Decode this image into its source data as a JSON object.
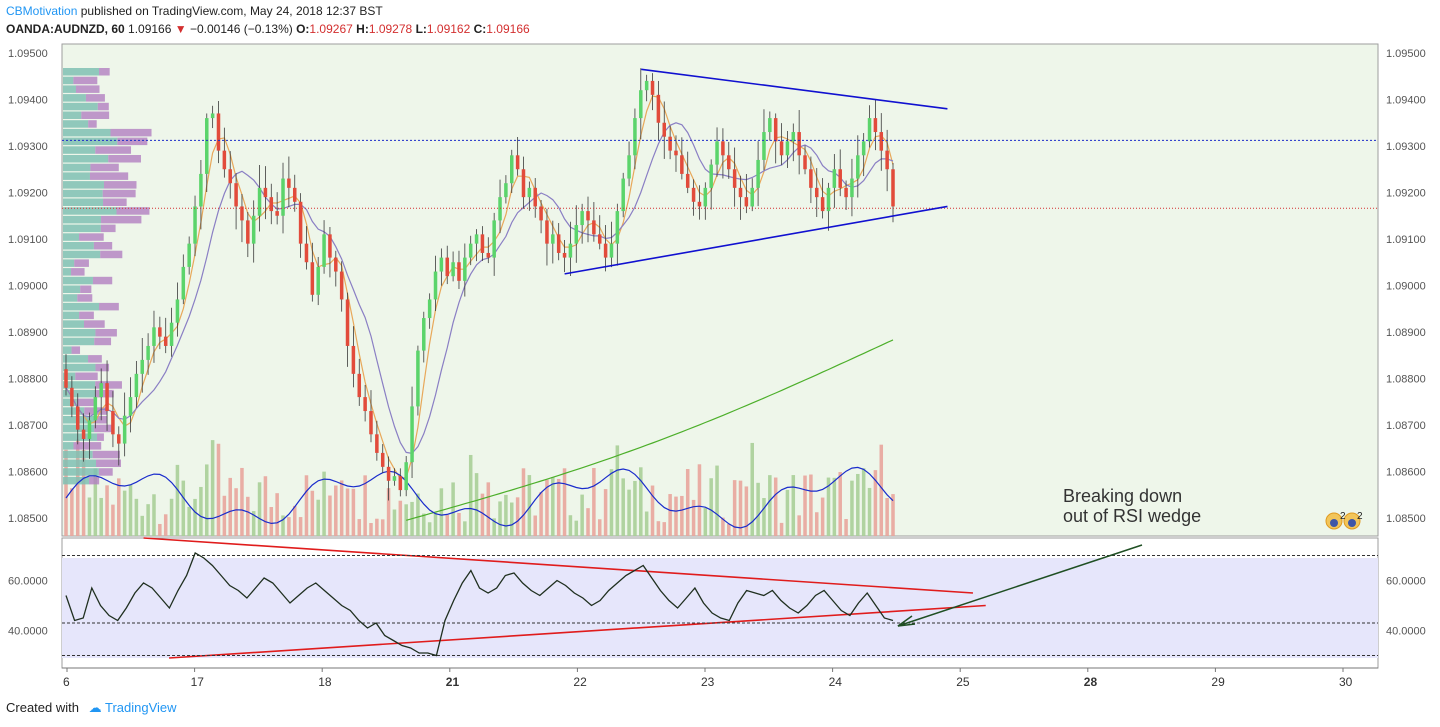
{
  "header": {
    "author": "CBMotivation",
    "published": "published on TradingView.com, May 24, 2018 12:37 BST",
    "symbol": "OANDA:AUDNZD, 60",
    "last": "1.09166",
    "change": "−0.00146 (−0.13%)",
    "o_label": "O:",
    "o_value": "1.09267",
    "h_label": "H:",
    "h_value": "1.09278",
    "l_label": "L:",
    "l_value": "1.09162",
    "c_label": "C:",
    "c_value": "1.09166"
  },
  "footer": {
    "created_with": "Created with",
    "brand": "TradingView"
  },
  "annotation": {
    "line1": "Breaking down",
    "line2": "out of RSI wedge"
  },
  "badge": {
    "count": "2"
  },
  "colors": {
    "up": "#5bd46b",
    "down": "#e24b3b",
    "price_bg": "#eef6ea",
    "rsi_bg": "#e6e6fb",
    "trend_blue": "#1010d0",
    "trend_red": "#e01c1c",
    "ma200": "#4caf2a",
    "ma_fast": "#e8a85a",
    "ma_slow": "#8a7fc4",
    "volume_ma": "#1a2ccc"
  },
  "chart_data": [
    {
      "type": "candlestick",
      "title": "OANDA:AUDNZD, 60",
      "ylim": [
        1.0845,
        1.0952
      ],
      "y_ticks": [
        "1.09500",
        "1.09400",
        "1.09300",
        "1.09200",
        "1.09100",
        "1.09000",
        "1.08900",
        "1.08800",
        "1.08700",
        "1.08600",
        "1.08500"
      ],
      "x_ticks": [
        "6",
        "17",
        "18",
        "21",
        "22",
        "23",
        "24",
        "25",
        "28",
        "29",
        "30"
      ],
      "last_price": 1.09166,
      "resistance_level": 1.09312,
      "trendlines": [
        {
          "name": "upper",
          "from": [
            "22.5",
            1.09465
          ],
          "to": [
            "24.9",
            1.0938
          ]
        },
        {
          "name": "lower",
          "from": [
            "21.9",
            1.09025
          ],
          "to": [
            "24.9",
            1.0917
          ]
        }
      ],
      "closes": [
        1.0878,
        1.0874,
        1.0869,
        1.0867,
        1.0871,
        1.0876,
        1.0879,
        1.0873,
        1.0868,
        1.0866,
        1.0872,
        1.0876,
        1.0881,
        1.0884,
        1.0887,
        1.0891,
        1.0889,
        1.0887,
        1.0892,
        1.0897,
        1.0904,
        1.0909,
        1.0917,
        1.0924,
        1.0936,
        1.0937,
        1.0929,
        1.0925,
        1.0922,
        1.0917,
        1.0914,
        1.0909,
        1.0915,
        1.0921,
        1.0919,
        1.0916,
        1.0915,
        1.0923,
        1.0921,
        1.0918,
        1.0909,
        1.0905,
        1.0898,
        1.0904,
        1.0911,
        1.0906,
        1.0903,
        1.0897,
        1.0887,
        1.0881,
        1.0876,
        1.0873,
        1.0868,
        1.0864,
        1.0861,
        1.0858,
        1.0859,
        1.0856,
        1.0862,
        1.0874,
        1.0886,
        1.0893,
        1.0897,
        1.0903,
        1.0906,
        1.0902,
        1.0905,
        1.0901,
        1.0906,
        1.0909,
        1.0911,
        1.0907,
        1.0906,
        1.0914,
        1.0919,
        1.0922,
        1.0928,
        1.0925,
        1.0919,
        1.0921,
        1.0917,
        1.0914,
        1.0909,
        1.0911,
        1.0907,
        1.0906,
        1.0909,
        1.0913,
        1.0916,
        1.0914,
        1.0911,
        1.0909,
        1.0906,
        1.0909,
        1.0916,
        1.0923,
        1.0928,
        1.0936,
        1.0942,
        1.0944,
        1.0941,
        1.0935,
        1.0932,
        1.0929,
        1.0928,
        1.0924,
        1.0921,
        1.0918,
        1.0917,
        1.0921,
        1.0926,
        1.0931,
        1.0928,
        1.0925,
        1.0921,
        1.0919,
        1.0917,
        1.0921,
        1.0927,
        1.0933,
        1.0936,
        1.0931,
        1.0928,
        1.0931,
        1.0933,
        1.0928,
        1.0925,
        1.0921,
        1.0919,
        1.0916,
        1.0921,
        1.0925,
        1.0921,
        1.0919,
        1.0923,
        1.0928,
        1.0931,
        1.0936,
        1.0933,
        1.0929,
        1.0925,
        1.0917
      ]
    },
    {
      "type": "line",
      "title": "RSI",
      "ylim": [
        25,
        77
      ],
      "y_ticks": [
        "60.0000",
        "40.0000"
      ],
      "levels": [
        70,
        43,
        30
      ],
      "trendlines": [
        {
          "name": "upper",
          "from": [
            "20.6",
            77
          ],
          "to": [
            "25.1",
            55
          ]
        },
        {
          "name": "lower",
          "from": [
            "20.8",
            29
          ],
          "to": [
            "25.2",
            50
          ]
        }
      ],
      "values": [
        54,
        44,
        45,
        57,
        50,
        46,
        44,
        49,
        55,
        59,
        57,
        53,
        49,
        56,
        62,
        71,
        69,
        66,
        62,
        58,
        56,
        53,
        57,
        61,
        59,
        55,
        51,
        54,
        57,
        59,
        56,
        53,
        50,
        48,
        44,
        41,
        43,
        38,
        36,
        34,
        33,
        31,
        31,
        30,
        44,
        52,
        59,
        64,
        57,
        55,
        57,
        62,
        63,
        59,
        56,
        54,
        57,
        60,
        58,
        55,
        53,
        50,
        52,
        56,
        59,
        62,
        64,
        66,
        61,
        56,
        52,
        49,
        53,
        57,
        51,
        47,
        45,
        44,
        51,
        56,
        55,
        54,
        56,
        52,
        49,
        47,
        50,
        54,
        56,
        52,
        48,
        46,
        51,
        55,
        50,
        45,
        44
      ]
    }
  ]
}
